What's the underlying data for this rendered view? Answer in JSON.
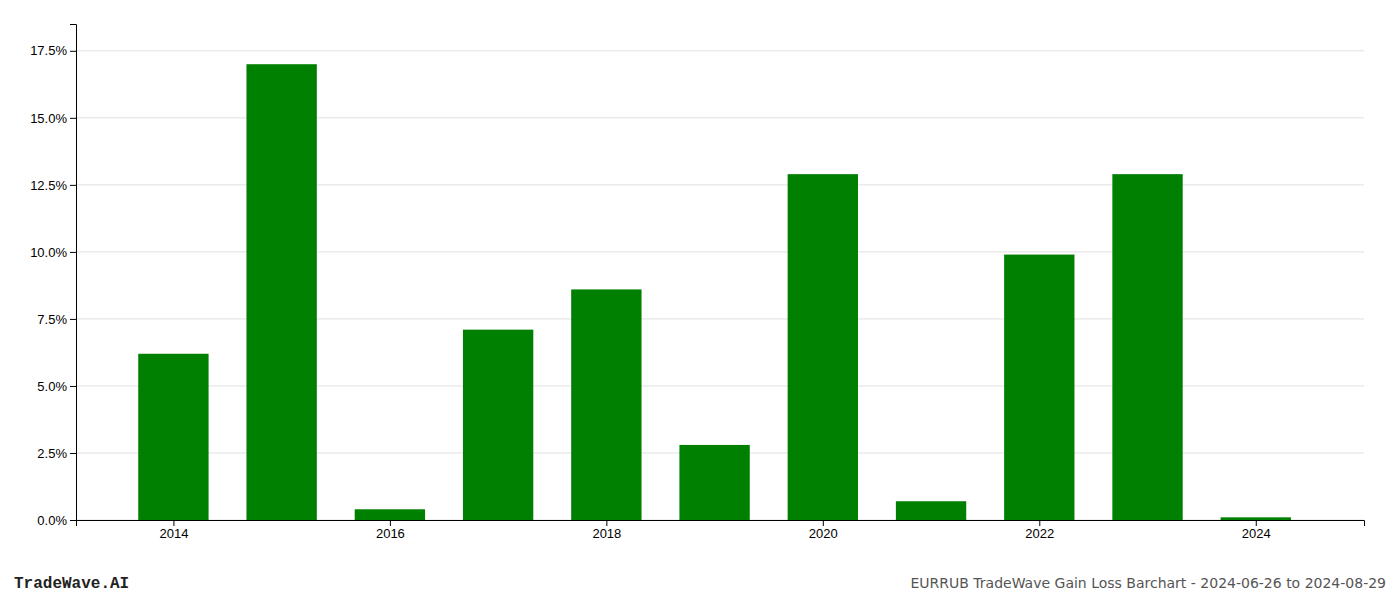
{
  "chart_data": {
    "type": "bar",
    "title": "EURRUB TradeWave Gain Loss Barchart - 2024-06-26 to 2024-08-29",
    "annotations": [
      "TradeWave.AI"
    ],
    "x": [
      2014,
      2015,
      2016,
      2017,
      2018,
      2019,
      2020,
      2021,
      2022,
      2023,
      2024
    ],
    "values": [
      0.062,
      0.17,
      0.004,
      0.071,
      0.086,
      0.028,
      0.129,
      0.007,
      0.099,
      0.129,
      0.001
    ],
    "color": "#008000",
    "xlim": [
      2013.1,
      2025.0
    ],
    "xticks": [
      2014,
      2016,
      2018,
      2020,
      2022,
      2024
    ],
    "ylim": [
      0.0,
      0.185
    ],
    "yticks": [
      {
        "value": 0.0,
        "label": "0.0%"
      },
      {
        "value": 0.025,
        "label": "2.5%"
      },
      {
        "value": 0.05,
        "label": "5.0%"
      },
      {
        "value": 0.075,
        "label": "7.5%"
      },
      {
        "value": 0.1,
        "label": "10.0%"
      },
      {
        "value": 0.125,
        "label": "12.5%"
      },
      {
        "value": 0.15,
        "label": "15.0%"
      },
      {
        "value": 0.175,
        "label": "17.5%"
      }
    ],
    "grid": true
  }
}
